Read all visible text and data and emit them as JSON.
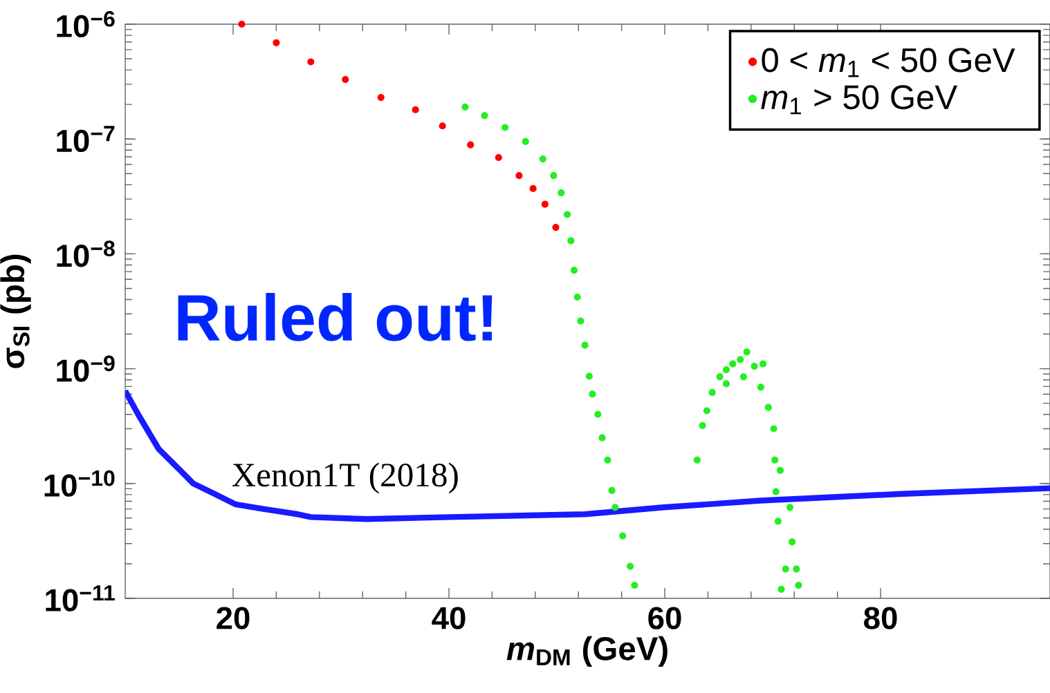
{
  "chart_data": {
    "type": "scatter",
    "xlabel": "*m*$_{DM}$ (GeV)",
    "ylabel": "σ$_{SI}$ (pb)",
    "xlim": [
      10,
      95.7
    ],
    "ylim": [
      1e-11,
      1e-06
    ],
    "log": "y",
    "xticks": [
      20,
      40,
      60,
      80
    ],
    "yticks": [
      {
        "value": 1e-11,
        "label": "10$^{−11}$"
      },
      {
        "value": 1e-10,
        "label": "10$^{−10}$"
      },
      {
        "value": 1e-09,
        "label": "10$^{−9}$"
      },
      {
        "value": 1e-08,
        "label": "10$^{−8}$"
      },
      {
        "value": 1e-07,
        "label": "10$^{−7}$"
      },
      {
        "value": 1e-06,
        "label": "10$^{−6}$"
      }
    ],
    "legend": "top right",
    "marker": "circle",
    "grid": false,
    "annotations": [
      "Ruled out!"
    ],
    "series": [
      {
        "name": "0 < *m*$_{1}$  < 50 GeV",
        "color": "#ff0000",
        "x": [
          20.8,
          24.0,
          27.2,
          30.4,
          33.7,
          36.9,
          39.4,
          42.0,
          44.6,
          46.5,
          47.8,
          48.9,
          49.9
        ],
        "values": [
          1e-06,
          6.9e-07,
          4.7e-07,
          3.3e-07,
          2.3e-07,
          1.8e-07,
          1.3e-07,
          8.9e-08,
          6.9e-08,
          4.8e-08,
          3.7e-08,
          2.7e-08,
          1.7e-08
        ]
      },
      {
        "name": "*m*$_{1}$ > 50 GeV",
        "color": "#22ee22",
        "x": [
          41.5,
          43.3,
          45.2,
          47.1,
          48.7,
          49.7,
          50.4,
          50.96,
          51.3,
          51.6,
          51.9,
          52.2,
          52.6,
          53.0,
          53.3,
          53.8,
          54.2,
          54.7,
          55.1,
          55.4,
          56.1,
          56.8,
          57.2,
          63.0,
          63.5,
          63.9,
          64.4,
          65.1,
          65.7,
          66.3,
          67.0,
          67.6,
          68.3,
          69.1,
          68.9,
          69.6,
          70.1,
          70.2,
          70.7,
          70.3,
          70.5,
          71.6,
          71.8,
          71.2,
          70.8,
          72.2,
          72.4,
          65.7,
          67.3
        ],
        "values": [
          1.9e-07,
          1.6e-07,
          1.26e-07,
          9.5e-08,
          6.7e-08,
          4.8e-08,
          3.4e-08,
          2.2e-08,
          1.3e-08,
          7.2e-09,
          4.2e-09,
          2.6e-09,
          1.6e-09,
          8.6e-10,
          6e-10,
          4e-10,
          2.5e-10,
          1.6e-10,
          8.7e-11,
          6.2e-11,
          3.5e-11,
          1.9e-11,
          1.3e-11,
          1.6e-10,
          3.2e-10,
          4.3e-10,
          6.2e-10,
          8.5e-10,
          9.8e-10,
          1.1e-09,
          1.2e-09,
          1.4e-09,
          1.05e-09,
          1.1e-09,
          6.9e-10,
          4.6e-10,
          3e-10,
          1.6e-10,
          1.3e-10,
          8.5e-11,
          4.7e-11,
          6.2e-11,
          3.1e-11,
          1.8e-11,
          1.2e-11,
          1.8e-11,
          1.3e-11,
          7.4e-10,
          8.5e-10
        ]
      },
      {
        "name": "Xenon1T (2018)",
        "color": "#1a1aff",
        "type": "line",
        "marker": "none",
        "x": [
          10,
          11.2,
          13.1,
          15.1,
          16.3,
          18.3,
          20.2,
          22.8,
          26.0,
          27.2,
          32.4,
          40.1,
          52.6,
          59.9,
          68.9,
          81.7,
          95.7
        ],
        "values": [
          6.4e-10,
          4e-10,
          2e-10,
          1.3e-10,
          1e-10,
          8.1e-11,
          6.6e-11,
          6e-11,
          5.4e-11,
          5.1e-11,
          4.9e-11,
          5.1e-11,
          5.4e-11,
          6.2e-11,
          7.1e-11,
          8.1e-11,
          9.1e-11
        ]
      }
    ]
  }
}
